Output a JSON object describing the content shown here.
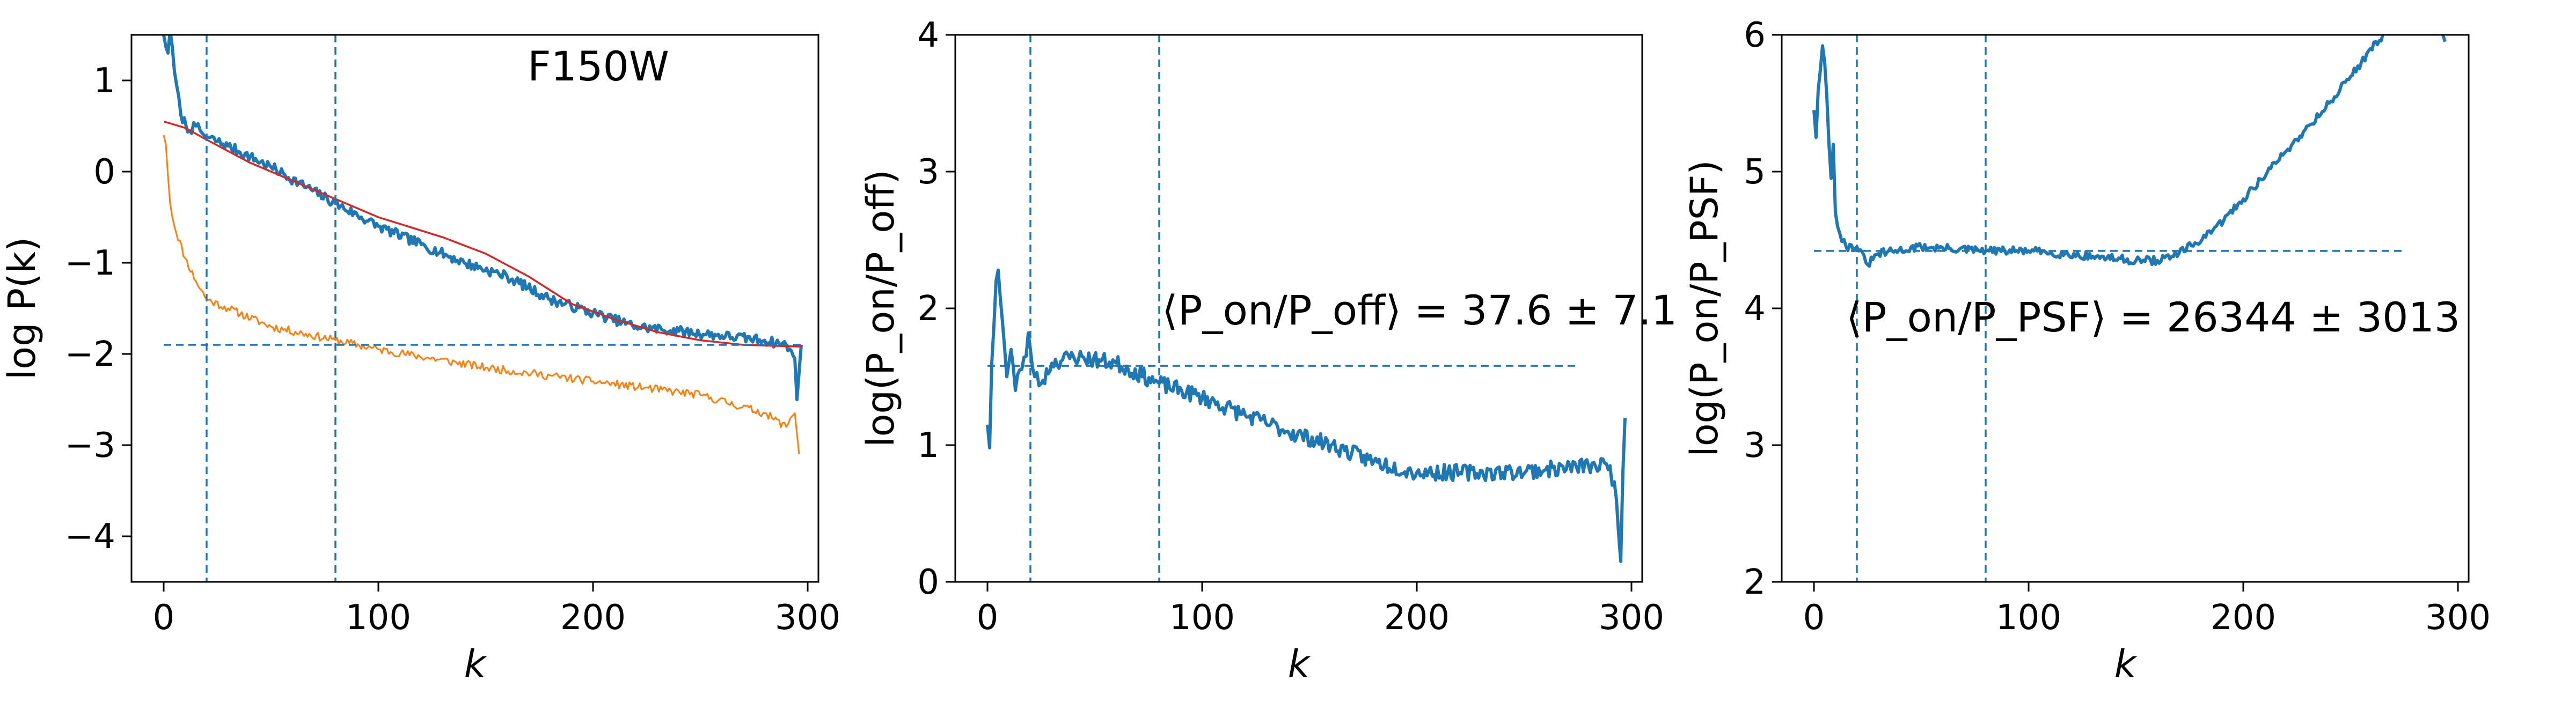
{
  "chart_data": [
    {
      "type": "line",
      "panel_label": "F150W",
      "xlabel": "k",
      "ylabel": "log P(k)",
      "xlim": [
        -15,
        305
      ],
      "ylim": [
        -4.5,
        1.5
      ],
      "xticks": [
        0,
        100,
        200,
        300
      ],
      "yticks": [
        -4,
        -3,
        -2,
        -1,
        0,
        1
      ],
      "vlines": [
        20,
        80
      ],
      "hline": {
        "y": -1.9,
        "x": [
          0,
          297
        ]
      },
      "colors": {
        "on": "#1f77b4",
        "off": "#ff7f0e",
        "model": "#d62728"
      },
      "series": [
        {
          "key": "on",
          "style": "noisy",
          "seed": 7,
          "noise": 0.055,
          "line_width": 6,
          "points": [
            [
              0,
              1.5
            ],
            [
              2,
              1.3
            ],
            [
              3,
              1.55
            ],
            [
              5,
              1.1
            ],
            [
              8,
              0.62
            ],
            [
              12,
              0.45
            ],
            [
              15,
              0.5
            ],
            [
              18,
              0.42
            ],
            [
              20,
              0.38
            ],
            [
              30,
              0.28
            ],
            [
              50,
              0.05
            ],
            [
              80,
              -0.35
            ],
            [
              100,
              -0.6
            ],
            [
              120,
              -0.8
            ],
            [
              140,
              -1.0
            ],
            [
              160,
              -1.15
            ],
            [
              180,
              -1.4
            ],
            [
              200,
              -1.55
            ],
            [
              220,
              -1.7
            ],
            [
              240,
              -1.75
            ],
            [
              260,
              -1.8
            ],
            [
              280,
              -1.85
            ],
            [
              290,
              -1.9
            ],
            [
              294,
              -2.05
            ],
            [
              295,
              -2.5
            ],
            [
              296,
              -2.2
            ],
            [
              297,
              -1.9
            ]
          ]
        },
        {
          "key": "off",
          "style": "noisy",
          "seed": 11,
          "noise": 0.045,
          "line_width": 3,
          "points": [
            [
              0,
              0.4
            ],
            [
              1,
              0.3
            ],
            [
              3,
              -0.35
            ],
            [
              5,
              -0.6
            ],
            [
              10,
              -0.95
            ],
            [
              15,
              -1.2
            ],
            [
              20,
              -1.4
            ],
            [
              30,
              -1.5
            ],
            [
              50,
              -1.7
            ],
            [
              80,
              -1.85
            ],
            [
              100,
              -1.95
            ],
            [
              150,
              -2.15
            ],
            [
              200,
              -2.3
            ],
            [
              250,
              -2.45
            ],
            [
              280,
              -2.65
            ],
            [
              290,
              -2.8
            ],
            [
              292,
              -2.7
            ],
            [
              294,
              -2.65
            ],
            [
              296,
              -3.1
            ]
          ]
        },
        {
          "key": "model",
          "style": "smooth",
          "line_width": 3.5,
          "points": [
            [
              0,
              0.55
            ],
            [
              10,
              0.48
            ],
            [
              20,
              0.35
            ],
            [
              40,
              0.1
            ],
            [
              60,
              -0.1
            ],
            [
              80,
              -0.3
            ],
            [
              100,
              -0.5
            ],
            [
              130,
              -0.72
            ],
            [
              150,
              -0.9
            ],
            [
              170,
              -1.15
            ],
            [
              190,
              -1.45
            ],
            [
              210,
              -1.62
            ],
            [
              230,
              -1.76
            ],
            [
              250,
              -1.85
            ],
            [
              270,
              -1.9
            ],
            [
              297,
              -1.92
            ]
          ]
        }
      ]
    },
    {
      "type": "line",
      "annotation": "⟨P_on/P_off⟩ = 37.6 ± 7.1",
      "xlabel": "k",
      "ylabel": "log(P_on/P_off)",
      "xlim": [
        -15,
        305
      ],
      "ylim": [
        0,
        4
      ],
      "xticks": [
        0,
        100,
        200,
        300
      ],
      "yticks": [
        0,
        1,
        2,
        3,
        4
      ],
      "vlines": [
        20,
        80
      ],
      "hline": {
        "y": 1.58,
        "x": [
          0,
          275
        ]
      },
      "colors": {
        "ratio": "#1f77b4"
      },
      "series": [
        {
          "key": "ratio",
          "style": "noisy",
          "seed": 23,
          "noise": 0.06,
          "line_width": 6,
          "points": [
            [
              0,
              1.15
            ],
            [
              1,
              0.98
            ],
            [
              2,
              1.6
            ],
            [
              4,
              2.2
            ],
            [
              5,
              2.28
            ],
            [
              7,
              1.9
            ],
            [
              9,
              1.5
            ],
            [
              11,
              1.7
            ],
            [
              13,
              1.4
            ],
            [
              15,
              1.55
            ],
            [
              18,
              1.65
            ],
            [
              19,
              1.82
            ],
            [
              20,
              1.7
            ],
            [
              22,
              1.5
            ],
            [
              25,
              1.45
            ],
            [
              30,
              1.6
            ],
            [
              40,
              1.65
            ],
            [
              60,
              1.6
            ],
            [
              80,
              1.45
            ],
            [
              100,
              1.35
            ],
            [
              120,
              1.22
            ],
            [
              140,
              1.1
            ],
            [
              160,
              1.0
            ],
            [
              180,
              0.88
            ],
            [
              200,
              0.8
            ],
            [
              220,
              0.8
            ],
            [
              240,
              0.8
            ],
            [
              260,
              0.82
            ],
            [
              280,
              0.85
            ],
            [
              290,
              0.85
            ],
            [
              293,
              0.6
            ],
            [
              295,
              0.15
            ],
            [
              296,
              0.8
            ],
            [
              297,
              1.2
            ]
          ]
        }
      ]
    },
    {
      "type": "line",
      "annotation": "⟨P_on/P_PSF⟩ = 26344 ± 3013",
      "xlabel": "k",
      "ylabel": "log(P_on/P_PSF)",
      "xlim": [
        -15,
        305
      ],
      "ylim": [
        2,
        6
      ],
      "xticks": [
        0,
        100,
        200,
        300
      ],
      "yticks": [
        2,
        3,
        4,
        5,
        6
      ],
      "vlines": [
        20,
        80
      ],
      "hline": {
        "y": 4.42,
        "x": [
          0,
          275
        ]
      },
      "colors": {
        "ratio": "#1f77b4"
      },
      "series": [
        {
          "key": "ratio",
          "style": "noisy",
          "seed": 31,
          "noise": 0.03,
          "line_width": 6,
          "points": [
            [
              0,
              5.45
            ],
            [
              1,
              5.25
            ],
            [
              2,
              5.6
            ],
            [
              4,
              5.92
            ],
            [
              5,
              5.8
            ],
            [
              6,
              5.55
            ],
            [
              7,
              5.2
            ],
            [
              8,
              4.95
            ],
            [
              9,
              5.2
            ],
            [
              10,
              4.7
            ],
            [
              12,
              4.55
            ],
            [
              15,
              4.45
            ],
            [
              20,
              4.45
            ],
            [
              25,
              4.32
            ],
            [
              30,
              4.4
            ],
            [
              50,
              4.45
            ],
            [
              80,
              4.42
            ],
            [
              100,
              4.42
            ],
            [
              130,
              4.38
            ],
            [
              150,
              4.35
            ],
            [
              160,
              4.35
            ],
            [
              170,
              4.4
            ],
            [
              185,
              4.55
            ],
            [
              200,
              4.8
            ],
            [
              220,
              5.15
            ],
            [
              240,
              5.5
            ],
            [
              255,
              5.8
            ],
            [
              265,
              6.0
            ],
            [
              270,
              6.1
            ]
          ]
        },
        {
          "key": "ratio_tail",
          "style": "smooth",
          "line_width": 6,
          "points": [
            [
              293,
              6.0
            ],
            [
              294,
              5.95
            ]
          ]
        }
      ]
    }
  ]
}
